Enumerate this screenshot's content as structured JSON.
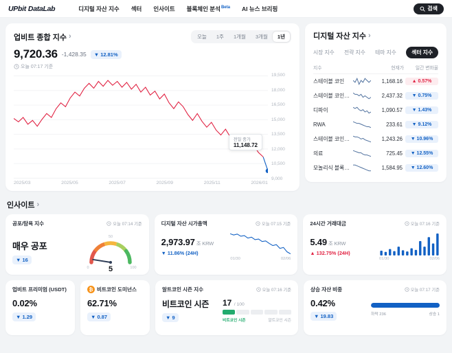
{
  "header": {
    "logo": {
      "part1": "UPbit",
      "part2": "DataLab"
    },
    "nav": [
      {
        "label": "디지털 자산 지수"
      },
      {
        "label": "섹터"
      },
      {
        "label": "인사이트"
      },
      {
        "label": "블록체인 분석",
        "badge": "Beta"
      },
      {
        "label": "AI 뉴스 브리핑"
      }
    ],
    "search_label": "검색"
  },
  "colors": {
    "up": "#e12343",
    "down": "#1261c4",
    "line": "#e12343",
    "spark": "#51729f",
    "green": "#22ab6e",
    "bitcoin": "#f7931a"
  },
  "composite": {
    "title": "업비트 종합 지수",
    "ranges": [
      "오늘",
      "1주",
      "1개월",
      "3개월",
      "1년"
    ],
    "selected_range": "1년",
    "price": "9,720.36",
    "change_abs": "-1,428.35",
    "change_pct": "▼ 12.81%",
    "as_of": "오늘 07:17 기준",
    "tooltip": {
      "label": "전일 종가",
      "value": "11,148.72"
    },
    "y_ticks": [
      "19,500",
      "18,000",
      "16,500",
      "15,000",
      "13,500",
      "12,000",
      "10,500",
      "9,000"
    ],
    "x_ticks": [
      "2025/03",
      "2025/05",
      "2025/07",
      "2025/09",
      "2025/11",
      "2026/01"
    ],
    "y_range": [
      9000,
      19500
    ],
    "values": [
      15100,
      14750,
      15200,
      14500,
      14900,
      14300,
      15000,
      15600,
      15200,
      16100,
      16700,
      16300,
      17200,
      17800,
      17400,
      18200,
      18700,
      18200,
      18900,
      18400,
      19000,
      18500,
      18900,
      18300,
      18800,
      18100,
      18600,
      17800,
      18300,
      17500,
      17900,
      17100,
      17600,
      16700,
      16100,
      16800,
      16300,
      15500,
      14900,
      15600,
      14800,
      14200,
      14700,
      13900,
      13400,
      14000,
      13200,
      12700,
      13100,
      12400,
      11900,
      12300,
      11600,
      11148.72,
      9720.36
    ],
    "split_index": 53
  },
  "indices_panel": {
    "title": "디지털 자산 지수",
    "tabs": [
      "시장 지수",
      "전략 지수",
      "테마 지수",
      "섹터 지수"
    ],
    "selected_tab": "섹터 지수",
    "columns": [
      "지수",
      "현재가",
      "일간 변화율"
    ],
    "rows": [
      {
        "name": "스테이블 코인",
        "price": "1,168.16",
        "change": "▲ 0.57%",
        "direction": "up",
        "spark": [
          8,
          7,
          9,
          6,
          8,
          7,
          9,
          8,
          7,
          8
        ]
      },
      {
        "name": "스테이블 코인 그룹",
        "price": "2,437.32",
        "change": "▼ 0.75%",
        "direction": "down",
        "spark": [
          9,
          8,
          8,
          7,
          8,
          6,
          7,
          6,
          5,
          6
        ]
      },
      {
        "name": "디파이",
        "price": "1,090.57",
        "change": "▼ 1.43%",
        "direction": "down",
        "spark": [
          9,
          8,
          9,
          7,
          6,
          7,
          5,
          6,
          4,
          5
        ]
      },
      {
        "name": "RWA",
        "price": "233.61",
        "change": "▼ 9.12%",
        "direction": "down",
        "spark": [
          10,
          9,
          8,
          8,
          7,
          6,
          5,
          4,
          4,
          3
        ]
      },
      {
        "name": "스테이블 코인 연관 ...",
        "price": "1,243.26",
        "change": "▼ 10.96%",
        "direction": "down",
        "spark": [
          10,
          9,
          9,
          8,
          6,
          7,
          5,
          4,
          3,
          2
        ]
      },
      {
        "name": "의료",
        "price": "725.45",
        "change": "▼ 12.55%",
        "direction": "down",
        "spark": [
          10,
          9,
          8,
          7,
          7,
          5,
          4,
          4,
          3,
          2
        ]
      },
      {
        "name": "모놀리식 블록체인",
        "price": "1,584.95",
        "change": "▼ 12.60%",
        "direction": "down",
        "spark": [
          9,
          9,
          8,
          7,
          6,
          5,
          4,
          3,
          2,
          2
        ]
      }
    ]
  },
  "insights": {
    "title": "인사이트",
    "fear_greed": {
      "title": "공포/탐욕 지수",
      "as_of": "오늘 07:14 기준",
      "label": "매우 공포",
      "badge": "▼ 16",
      "value": 5,
      "min_label": "0",
      "mid_label": "50",
      "max_label": "100"
    },
    "market_cap": {
      "title": "디지털 자산 시가총액",
      "as_of": "오늘 07:15 기준",
      "value": "2,973.97",
      "unit": "조 KRW",
      "change": "▼ 11.86% (24H)",
      "direction": "down",
      "x_ticks": [
        "01/30",
        "02/06"
      ],
      "values": [
        3620,
        3580,
        3610,
        3540,
        3560,
        3480,
        3510,
        3430,
        3450,
        3370,
        3390,
        3310,
        3240,
        3270,
        3150,
        3180,
        3040,
        2974
      ]
    },
    "volume": {
      "title": "24시간 거래대금",
      "as_of": "오늘 07:16 기준",
      "value": "5.49",
      "unit": "조 KRW",
      "change": "▲ 132.75% (24H)",
      "direction": "up",
      "x_ticks": [
        "01/30",
        "02/06"
      ],
      "values": [
        1.2,
        0.9,
        1.6,
        1.1,
        2.2,
        1.3,
        1.0,
        1.8,
        1.4,
        3.6,
        2.2,
        4.6,
        3.0,
        5.49
      ]
    },
    "premium": {
      "title": "업비트 프리미엄 (USDT)",
      "value": "0.02%",
      "badge": "▼ 1.29"
    },
    "dominance": {
      "title": "비트코인 도미넌스",
      "icon": "bitcoin",
      "value": "62.71%",
      "badge": "▼ 0.87"
    },
    "altseason": {
      "title": "알트코인 시즌 지수",
      "as_of": "오늘 07:16 기준",
      "label": "비트코인 시즌",
      "badge": "▼ 9",
      "score": "17",
      "score_max": "/ 100",
      "percent": 17,
      "left_label": "비트코인 시즌",
      "right_label": "알트코인 시즌"
    },
    "breadth": {
      "title": "상승 자산 비중",
      "as_of": "오늘 07:17 기준",
      "value": "0.42%",
      "badge": "▼ 19.83",
      "percent": 99.5,
      "left_label": "하락 236",
      "right_label": "상승 1"
    }
  }
}
